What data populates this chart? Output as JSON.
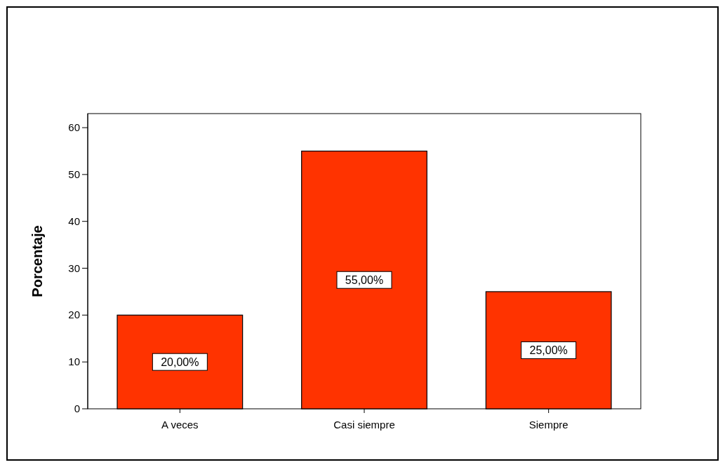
{
  "chart_data": {
    "type": "bar",
    "ylabel": "Porcentaje",
    "categories": [
      "A veces",
      "Casi siempre",
      "Siempre"
    ],
    "values": [
      20,
      55,
      25
    ],
    "color": "#ff3300",
    "value_labels": [
      "20,00%",
      "55,00%",
      "25,00%"
    ],
    "ylim": [
      0,
      63
    ],
    "yticks": [
      0,
      10,
      20,
      30,
      40,
      50,
      60
    ]
  }
}
